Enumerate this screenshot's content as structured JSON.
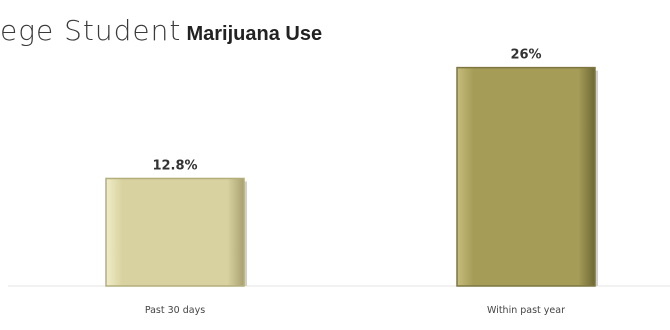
{
  "chart_data": {
    "type": "bar",
    "title_part1": "ege Student",
    "title_part2": "Marijuana Use",
    "categories": [
      "Past 30 days",
      "Within past year"
    ],
    "values": [
      12.8,
      26
    ],
    "value_labels": [
      "12.8%",
      "26%"
    ],
    "colors": [
      "#d8d2a0",
      "#a59c58"
    ],
    "ylim": [
      0,
      30
    ],
    "grid": false,
    "legend": "none"
  }
}
